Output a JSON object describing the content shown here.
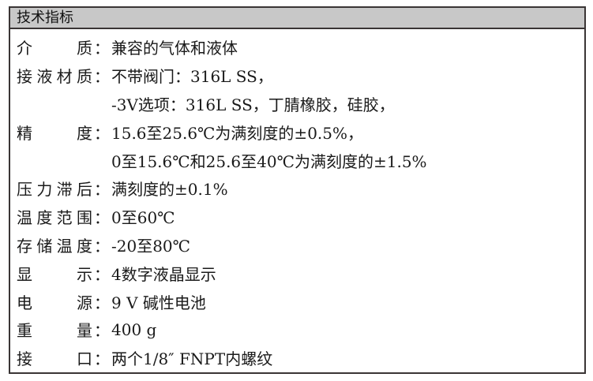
{
  "title": "技术指标",
  "specs": [
    {
      "label": "介质",
      "colon": "：",
      "value": "兼容的气体和液体"
    },
    {
      "label": "接液材质",
      "colon": "：",
      "value": "不带阀门：316L SS，"
    },
    {
      "label": "",
      "colon": "",
      "value": "-3V选项：316L SS，丁腈橡胶，硅胶，"
    },
    {
      "label": "精度",
      "colon": "：",
      "value": "15.6至25.6℃为满刻度的±0.5%，"
    },
    {
      "label": "",
      "colon": "",
      "value": "0至15.6℃和25.6至40℃为满刻度的±1.5%"
    },
    {
      "label": "压力滞后",
      "colon": "：",
      "value": "满刻度的±0.1%"
    },
    {
      "label": "温度范围",
      "colon": "：",
      "value": "0至60℃"
    },
    {
      "label": "存储温度",
      "colon": "：",
      "value": "-20至80℃"
    },
    {
      "label": "显示",
      "colon": "：",
      "value": "4数字液晶显示"
    },
    {
      "label": "电源",
      "colon": "：",
      "value": "9 V 碱性电池"
    },
    {
      "label": "重量",
      "colon": "：",
      "value": "400 g"
    },
    {
      "label": "接口",
      "colon": "：",
      "value": "两个1/8″ FNPT内螺纹"
    }
  ]
}
